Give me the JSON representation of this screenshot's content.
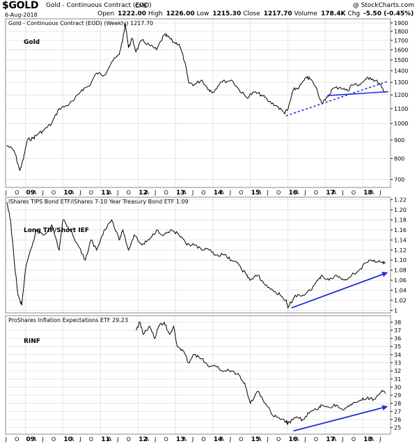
{
  "header": {
    "symbol": "$GOLD",
    "description": "Gold - Continuous Contract (EOD)",
    "exchange": "CME",
    "copyright": "@ StockCharts.com",
    "date": "6-Aug-2018",
    "open_label": "Open",
    "open": "1222.00",
    "high_label": "High",
    "high": "1226.00",
    "low_label": "Low",
    "low": "1215.30",
    "close_label": "Close",
    "close": "1217.70",
    "volume_label": "Volume",
    "volume": "178.4K",
    "chg_label": "Chg",
    "chg": "-5.50 (-0.45%)"
  },
  "colors": {
    "price": "#000000",
    "annotation": "#1f2fd8",
    "grid": "#e4e4e4",
    "frame": "#888888"
  },
  "chart_data": [
    {
      "type": "line",
      "title": "Gold - Continuous Contract (EOD) (Weekly) 1217.70",
      "annotation": "Gold",
      "y_scale": "log",
      "ylim": [
        665,
        1950
      ],
      "yticks": [
        700,
        800,
        900,
        1000,
        1100,
        1200,
        1300,
        1400,
        1500,
        1600,
        1700,
        1800,
        1900
      ],
      "series": [
        {
          "x": [
            2008.5,
            2008.7,
            2008.85,
            2008.95,
            2009.05,
            2009.2,
            2009.3,
            2009.5,
            2009.7,
            2009.9,
            2010.1,
            2010.3,
            2010.5,
            2010.7,
            2010.9,
            2011.1,
            2011.3,
            2011.5,
            2011.6,
            2011.67,
            2011.75,
            2011.85,
            2011.95,
            2012.1,
            2012.3,
            2012.5,
            2012.7,
            2012.8,
            2012.95,
            2013.1,
            2013.25,
            2013.35,
            2013.5,
            2013.7,
            2013.9,
            2014.0,
            2014.2,
            2014.5,
            2014.7,
            2014.9,
            2015.1,
            2015.3,
            2015.5,
            2015.7,
            2015.9,
            2016.0,
            2016.15,
            2016.3,
            2016.5,
            2016.6,
            2016.75,
            2016.9,
            2017.0,
            2017.2,
            2017.4,
            2017.6,
            2017.7,
            2017.9,
            2018.1,
            2018.2,
            2018.4,
            2018.5,
            2018.6
          ],
          "values": [
            870,
            840,
            740,
            800,
            900,
            910,
            930,
            960,
            1000,
            1100,
            1120,
            1160,
            1240,
            1270,
            1380,
            1360,
            1480,
            1550,
            1720,
            1880,
            1620,
            1720,
            1580,
            1700,
            1650,
            1600,
            1760,
            1740,
            1680,
            1660,
            1480,
            1300,
            1280,
            1320,
            1240,
            1220,
            1300,
            1320,
            1240,
            1180,
            1220,
            1200,
            1150,
            1120,
            1070,
            1090,
            1240,
            1260,
            1340,
            1330,
            1260,
            1140,
            1160,
            1250,
            1260,
            1230,
            1280,
            1280,
            1330,
            1340,
            1300,
            1260,
            1218
          ]
        }
      ],
      "trendlines": [
        {
          "style": "dashed",
          "x": [
            2015.95,
            2018.68
          ],
          "values": [
            1050,
            1310
          ]
        },
        {
          "style": "solid",
          "x": [
            2017.05,
            2018.68
          ],
          "values": [
            1195,
            1225
          ]
        }
      ]
    },
    {
      "type": "line",
      "title": "iShares TIPS Bond ETF/iShares 7-10 Year Treasury Bond ETF 1.09",
      "annotation": "Long TIP/Short IEF",
      "ylim": [
        0.995,
        1.225
      ],
      "yticks": [
        1.0,
        1.02,
        1.04,
        1.06,
        1.08,
        1.1,
        1.12,
        1.14,
        1.16,
        1.18,
        1.2,
        1.22
      ],
      "series": [
        {
          "x": [
            2008.5,
            2008.6,
            2008.7,
            2008.8,
            2008.9,
            2009.0,
            2009.1,
            2009.3,
            2009.5,
            2009.7,
            2009.9,
            2010.0,
            2010.2,
            2010.4,
            2010.6,
            2010.75,
            2010.9,
            2011.1,
            2011.3,
            2011.5,
            2011.6,
            2011.75,
            2011.9,
            2012.1,
            2012.3,
            2012.5,
            2012.7,
            2012.9,
            2013.1,
            2013.3,
            2013.5,
            2013.7,
            2013.9,
            2014.1,
            2014.3,
            2014.5,
            2014.7,
            2014.9,
            2015.0,
            2015.2,
            2015.4,
            2015.6,
            2015.8,
            2015.95,
            2016.0,
            2016.2,
            2016.4,
            2016.6,
            2016.8,
            2016.9,
            2017.1,
            2017.3,
            2017.5,
            2017.7,
            2017.9,
            2018.1,
            2018.3,
            2018.5,
            2018.6
          ],
          "values": [
            1.215,
            1.18,
            1.1,
            1.03,
            1.01,
            1.08,
            1.11,
            1.16,
            1.15,
            1.17,
            1.12,
            1.18,
            1.16,
            1.13,
            1.1,
            1.14,
            1.12,
            1.16,
            1.18,
            1.14,
            1.16,
            1.12,
            1.15,
            1.13,
            1.14,
            1.16,
            1.15,
            1.16,
            1.15,
            1.13,
            1.13,
            1.12,
            1.12,
            1.11,
            1.11,
            1.1,
            1.09,
            1.07,
            1.06,
            1.07,
            1.05,
            1.04,
            1.03,
            1.02,
            1.005,
            1.03,
            1.03,
            1.04,
            1.06,
            1.07,
            1.06,
            1.07,
            1.06,
            1.07,
            1.08,
            1.095,
            1.1,
            1.095,
            1.093
          ]
        }
      ],
      "trendlines": [
        {
          "style": "arrow",
          "x": [
            2016.1,
            2018.65
          ],
          "values": [
            1.005,
            1.075
          ]
        }
      ]
    },
    {
      "type": "line",
      "title": "ProShares Inflation Expectations ETF 29.23",
      "annotation": "RINF",
      "ylim": [
        24.2,
        38.8
      ],
      "yticks": [
        25,
        26,
        27,
        28,
        29,
        30,
        31,
        32,
        33,
        34,
        35,
        36,
        37,
        38
      ],
      "series": [
        {
          "x": [
            2011.95,
            2012.05,
            2012.15,
            2012.3,
            2012.45,
            2012.55,
            2012.7,
            2012.85,
            2012.95,
            2013.05,
            2013.2,
            2013.35,
            2013.5,
            2013.7,
            2013.9,
            2014.1,
            2014.3,
            2014.5,
            2014.7,
            2014.85,
            2015.0,
            2015.2,
            2015.4,
            2015.6,
            2015.8,
            2015.95,
            2016.0,
            2016.2,
            2016.4,
            2016.6,
            2016.8,
            2016.9,
            2017.1,
            2017.3,
            2017.5,
            2017.7,
            2017.9,
            2018.1,
            2018.3,
            2018.5,
            2018.6
          ],
          "values": [
            37.0,
            38.0,
            36.5,
            37.5,
            36.0,
            37.5,
            38.0,
            36.5,
            37.5,
            35.0,
            34.5,
            33.0,
            34.0,
            33.5,
            32.5,
            32.5,
            32.0,
            32.0,
            31.5,
            30.5,
            28.0,
            29.5,
            28.0,
            26.5,
            26.0,
            25.8,
            25.5,
            26.2,
            26.0,
            27.0,
            27.2,
            27.8,
            27.5,
            27.8,
            27.2,
            27.8,
            28.3,
            28.6,
            28.5,
            29.5,
            29.2
          ]
        }
      ],
      "trendlines": [
        {
          "style": "arrow",
          "x": [
            2016.15,
            2018.65
          ],
          "values": [
            24.6,
            27.6
          ]
        }
      ]
    }
  ],
  "x_axis": {
    "xlim": [
      2008.47,
      2018.74
    ],
    "year_labels": [
      {
        "x": 2009.0,
        "label": "09"
      },
      {
        "x": 2010.0,
        "label": "10"
      },
      {
        "x": 2011.0,
        "label": "11"
      },
      {
        "x": 2012.0,
        "label": "12"
      },
      {
        "x": 2013.0,
        "label": "13"
      },
      {
        "x": 2014.0,
        "label": "14"
      },
      {
        "x": 2015.0,
        "label": "15"
      },
      {
        "x": 2016.0,
        "label": "16"
      },
      {
        "x": 2017.0,
        "label": "17"
      },
      {
        "x": 2018.0,
        "label": "18"
      }
    ],
    "month_letters": [
      "A",
      "J",
      "O"
    ]
  }
}
